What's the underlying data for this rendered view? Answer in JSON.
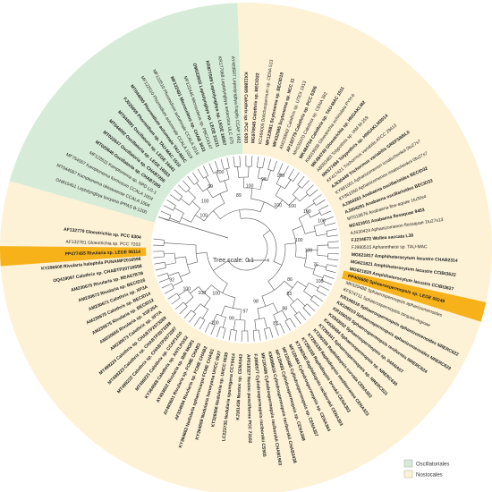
{
  "colors": {
    "oscillatoriales": "#d7ecd8",
    "nostocales": "#fdf2d6",
    "highlight": "#f7b21a",
    "branch": "#555555"
  },
  "scale_bar": {
    "label": "Tree scale: 0.1"
  },
  "legend": [
    {
      "label": "Oscillatoriales",
      "color": "#d7ecd8"
    },
    {
      "label": "Nostocales",
      "color": "#fdf2d6"
    }
  ],
  "leaves": [
    {
      "label": "ON815451 Leptolyngbya boryana IPPAS B-1200",
      "group": "osc",
      "bold": false
    },
    {
      "label": "MT044087 Kamptonema okinawense CCALA 1004",
      "group": "osc",
      "bold": false
    },
    {
      "label": "MF754007 Kamptonema formosum CCALA 1004",
      "group": "osc",
      "bold": false
    },
    {
      "label": "MF122611 Kamptonema sp. NPD LG-1",
      "group": "osc",
      "bold": false
    },
    {
      "label": "MT020646 Oscillatoria sp. CHAB7205",
      "group": "osc",
      "bold": true
    },
    {
      "label": "MT022647 Oscillatoria sp. CHAB7206",
      "group": "osc",
      "bold": true
    },
    {
      "label": "MT044092 Oscillatoria sp. LEGE 16553",
      "group": "osc",
      "bold": true
    },
    {
      "label": "MT044091 Oscillatoria sp. LEGE 16441",
      "group": "osc",
      "bold": true
    },
    {
      "label": "FJ025959 Phormidium sp. TAU-MAC 1510",
      "group": "osc",
      "bold": true
    },
    {
      "label": "MT044095 Phormidium autumnale TAU-MAC",
      "group": "osc",
      "bold": true
    },
    {
      "label": "MF122510 Phormidium autumnale CCALA 1019",
      "group": "osc",
      "bold": false
    },
    {
      "label": "MF122510 Phormidium autumnale CCALA 1016",
      "group": "osc",
      "bold": false
    },
    {
      "label": "MF122491 Microcoleus sp. CHAB 3031",
      "group": "osc",
      "bold": true
    },
    {
      "label": "MF122445 Microcoleus sp. PBCC4147",
      "group": "osc",
      "bold": false
    },
    {
      "label": "OM022602 Leptolyngbya sp. LEGE 21211",
      "group": "osc",
      "bold": true
    },
    {
      "label": "KR877009 Leptolyngbya sp. LEGE 16557",
      "group": "osc",
      "bold": true
    },
    {
      "label": "KR177068 Leptolyngbya antarctica ULC 075",
      "group": "osc",
      "bold": false
    },
    {
      "label": "AY493597 Leptolyngbya fragilis CCAP 1462",
      "group": "osc",
      "bold": false
    },
    {
      "label": "KX118665 Calothrix sp. PCC 6303",
      "group": "nos",
      "bold": true
    },
    {
      "label": "MG970545 Calothrix sp. BECID22",
      "group": "nos",
      "bold": true
    },
    {
      "label": "KC466005 Dolichospermum sp. CENA 513",
      "group": "nos",
      "bold": false
    },
    {
      "label": "MF123581 Scytonema sp. BECID19",
      "group": "nos",
      "bold": true
    },
    {
      "label": "MF432585 Scytonema sp. NCC 11",
      "group": "nos",
      "bold": true
    },
    {
      "label": "AM230662 Calothrix sp. UTEX 1913",
      "group": "nos",
      "bold": false
    },
    {
      "label": "AF132779 Calothrix sp. PCC 6306",
      "group": "nos",
      "bold": true
    },
    {
      "label": "MH105070 Calothrix sp. CENA 382",
      "group": "nos",
      "bold": false
    },
    {
      "label": "MK484754 Calothrix sp. TAU-MAC 1511",
      "group": "nos",
      "bold": true
    },
    {
      "label": "KM019936 Gloeotrichia echinulata PYH-6",
      "group": "nos",
      "bold": false
    },
    {
      "label": "MK484749 Gloeotrichia sp. HNGAKLM2",
      "group": "nos",
      "bold": true
    },
    {
      "label": "AB093483 Tolypothrix sp. IAM M-259",
      "group": "nos",
      "bold": false
    },
    {
      "label": "MK577484 Tolypothrix sp. HNGAKLM3014",
      "group": "nos",
      "bold": true
    },
    {
      "label": "KF417421 Trichormus variabilis ATCC 29413",
      "group": "nos",
      "bold": false
    },
    {
      "label": "AJ630449 Trichormus variabilis GREFSBBL0",
      "group": "nos",
      "bold": true
    },
    {
      "label": "KY861001 Aphanizomenon issatschenkoi 0tu27s7",
      "group": "nos",
      "bold": false
    },
    {
      "label": "KY861060 Aphanizomenon issatschenkoi 0tu27s7",
      "group": "nos",
      "bold": false
    },
    {
      "label": "AJ304261 Anabaena oscillarioides BECID32",
      "group": "nos",
      "bold": true
    },
    {
      "label": "AJ304291 Anabaena oscillarioides BECID33",
      "group": "nos",
      "bold": true
    },
    {
      "label": "MT019876 Anabaena flos-aquae 1tu30s4",
      "group": "nos",
      "bold": false
    },
    {
      "label": "MZ421601 Anabaena flosaquae 9453",
      "group": "nos",
      "bold": true
    },
    {
      "label": "AJ630424 Aphanizomenon flosaquae 1tu27s13",
      "group": "nos",
      "bold": false
    },
    {
      "label": "FJ234672 Wollea saccata L38",
      "group": "nos",
      "bold": true
    },
    {
      "label": "FJ980515 Aphanothece sp. TAU-MAC",
      "group": "nos",
      "bold": false
    },
    {
      "label": "MG621817 Amphiheterocytum lacustre CHAB2314",
      "group": "nos",
      "bold": true
    },
    {
      "label": "MG621821 Amphiheterocytum lacustre CCIBt3622",
      "group": "nos",
      "bold": true
    },
    {
      "label": "MG621825 Amphiheterocytum lacustre CCIBt3627",
      "group": "nos",
      "bold": true
    },
    {
      "label": "PP400660 Sphaerospermopsis sp. LEGE 00249",
      "group": "nos",
      "bold": true,
      "highlight": true
    },
    {
      "label": "MK529488 Sphaerospermopsis aphanizomenoides",
      "group": "nos",
      "bold": false
    },
    {
      "label": "KF574711 Sphaerospermopsis torques-reginae",
      "group": "nos",
      "bold": false
    },
    {
      "label": "KR106016 Sphaerospermopsis aphanizomenoides NRERC622",
      "group": "nos",
      "bold": true
    },
    {
      "label": "KR106019 Sphaerospermopsis aphanizomenoides NRERC623",
      "group": "nos",
      "bold": true
    },
    {
      "label": "KR106020 Sphaerospermopsis reniformis NRERC624",
      "group": "nos",
      "bold": true
    },
    {
      "label": "KX943052 Sphaerospermopsis sp. 04ANA07",
      "group": "nos",
      "bold": true
    },
    {
      "label": "KX638484 Sphaerospermopsis sp. NRERC630",
      "group": "nos",
      "bold": true
    },
    {
      "label": "KT290341 Sphaerospermopsis sp. NRERC631",
      "group": "nos",
      "bold": true
    },
    {
      "label": "KT290336 Raphidiopsis curvata CENA302",
      "group": "nos",
      "bold": true
    },
    {
      "label": "KT290339 Raphidiopsis mediterranea CENA323",
      "group": "nos",
      "bold": true
    },
    {
      "label": "KT290338 Raphidiopsis brookii CENA303",
      "group": "nos",
      "bold": true
    },
    {
      "label": "KT290340 Raphidiopsis raciborskii CENA303",
      "group": "nos",
      "bold": true
    },
    {
      "label": "MF120484 Cylindrospermopsis sp. CENA364",
      "group": "nos",
      "bold": true
    },
    {
      "label": "MF120485 Cylindrospermopsis sp. CENA357",
      "group": "nos",
      "bold": true
    },
    {
      "label": "MF120483 Cylindrospermopsis sp. CENA388",
      "group": "nos",
      "bold": true
    },
    {
      "label": "KM388616 Cylindrospermopsis raciborskii CHAB3438",
      "group": "nos",
      "bold": true
    },
    {
      "label": "MF120486 Cylindrospermopsis raciborskii CHAB1903",
      "group": "nos",
      "bold": true
    },
    {
      "label": "FJ890577 Cylindrospermopsis raciborskii CS505",
      "group": "nos",
      "bold": true
    },
    {
      "label": "AP018327 Nostoc punctiforme PCC 73102",
      "group": "nos",
      "bold": true
    },
    {
      "label": "KJ161436 Nostoc sp. CENA543",
      "group": "nos",
      "bold": true
    },
    {
      "label": "LC223735 Nodularia spumigena CCY9414",
      "group": "nos",
      "bold": true
    },
    {
      "label": "KT326566 Nodularia sp. UHCC 0039",
      "group": "nos",
      "bold": true
    },
    {
      "label": "KY364659 Nodularia harveyana UHCC 0027",
      "group": "nos",
      "bold": true
    },
    {
      "label": "KY364663 Nodularia sphaerocarpa FCME CHAB1",
      "group": "nos",
      "bold": true
    },
    {
      "label": "AF334694 Rivularia sp. FCME CHAB2",
      "group": "nos",
      "bold": true
    },
    {
      "label": "AY493601 Rivularia sp. FCME CHAB3",
      "group": "nos",
      "bold": true
    },
    {
      "label": "AY493602 Rivularia sp. BIR MGR1",
      "group": "nos",
      "bold": true
    },
    {
      "label": "KY364668 Calothrix sp. ANTLPOS2",
      "group": "nos",
      "bold": true
    },
    {
      "label": "MT499221 Calothrix sp. CCAP1410",
      "group": "nos",
      "bold": true
    },
    {
      "label": "MT499222 Calothrix sp. CHABTP2073287",
      "group": "nos",
      "bold": true
    },
    {
      "label": "MT499223 Calothrix sp. CHABTP2073288",
      "group": "nos",
      "bold": true
    },
    {
      "label": "MT499224 Calothrix sp. CHABTP2073289",
      "group": "nos",
      "bold": true
    },
    {
      "label": "AM230673 Calothrix sp. XP7A",
      "group": "nos",
      "bold": true
    },
    {
      "label": "AM230665 Rivularia sp. XSF25A",
      "group": "nos",
      "bold": true
    },
    {
      "label": "AM230675 Rivularia sp. BECID12",
      "group": "nos",
      "bold": true
    },
    {
      "label": "AM230675 Calothrix sp. BECID14",
      "group": "nos",
      "bold": true
    },
    {
      "label": "AM230671 Calothrix sp. XP3A",
      "group": "nos",
      "bold": true
    },
    {
      "label": "AM230673 Rivularia sp. BECID16",
      "group": "nos",
      "bold": true
    },
    {
      "label": "AM230675 Rivularia sp. BEA67B7B",
      "group": "nos",
      "bold": true
    },
    {
      "label": "OQ419097 Calothrix sp. CHABTP20716598",
      "group": "nos",
      "bold": true
    },
    {
      "label": "KY296608 Rivularia halophila PUNAMP2016598",
      "group": "nos",
      "bold": true
    },
    {
      "label": "PP477455 Rivularia sp. LEGE 06114",
      "group": "nos",
      "bold": true,
      "highlight": true
    },
    {
      "label": "AF132781 Gloeotrichia sp. PCC 7203",
      "group": "nos",
      "bold": false
    },
    {
      "label": "AF132779 Gloeotrichia sp. PCC 6304",
      "group": "nos",
      "bold": true
    }
  ],
  "bootstrap": [
    "100",
    "100",
    "99",
    "100",
    "89",
    "100",
    "98",
    "100",
    "100",
    "100",
    "100",
    "100",
    "100",
    "100",
    "75",
    "100",
    "86",
    "83",
    "88",
    "87",
    "98",
    "97",
    "99",
    "100",
    "100",
    "100",
    "100",
    "92"
  ]
}
